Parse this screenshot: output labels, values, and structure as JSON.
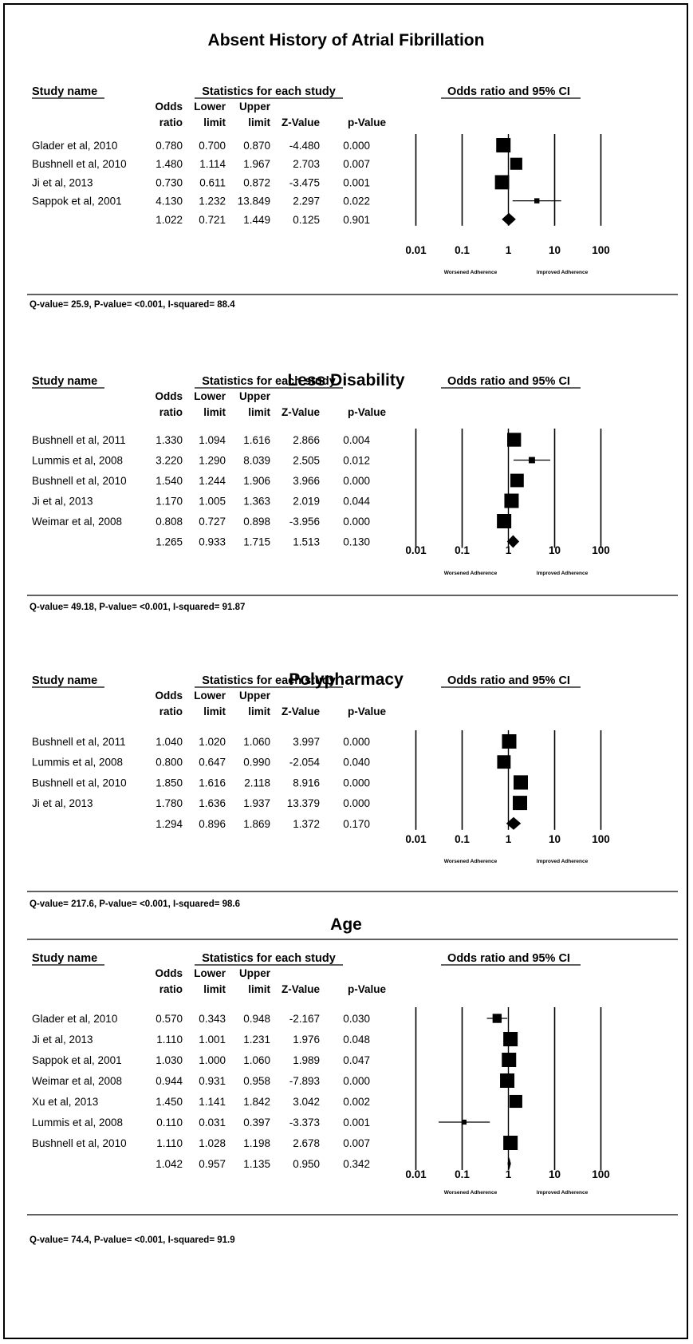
{
  "columns": {
    "study": "Study name",
    "stats": "Statistics for each study",
    "forest": "Odds ratio and 95% CI",
    "odds": [
      "Odds",
      "ratio"
    ],
    "lower": [
      "Lower",
      "limit"
    ],
    "upper": [
      "Upper",
      "limit"
    ],
    "z": "Z-Value",
    "p": "p-Value"
  },
  "adherence": {
    "worsened": "Worsened Adherence",
    "improved": "Improved Adherence"
  },
  "chart_data": [
    {
      "type": "forest",
      "title": "Absent History of Atrial Fibrillation",
      "x_scale": "log",
      "x_ticks": [
        0.01,
        0.1,
        1,
        10,
        100
      ],
      "x_tick_labels": [
        "0.01",
        "0.1",
        "1",
        "10",
        "100"
      ],
      "rows": [
        {
          "study": "Glader et al, 2010",
          "or": "0.780",
          "lower": "0.700",
          "upper": "0.870",
          "z": "-4.480",
          "p": "0.000"
        },
        {
          "study": "Bushnell et al, 2010",
          "or": "1.480",
          "lower": "1.114",
          "upper": "1.967",
          "z": "2.703",
          "p": "0.007"
        },
        {
          "study": "Ji et al, 2013",
          "or": "0.730",
          "lower": "0.611",
          "upper": "0.872",
          "z": "-3.475",
          "p": "0.001"
        },
        {
          "study": "Sappok et al, 2001",
          "or": "4.130",
          "lower": "1.232",
          "upper": "13.849",
          "z": "2.297",
          "p": "0.022"
        }
      ],
      "summary": {
        "or": "1.022",
        "lower": "0.721",
        "upper": "1.449",
        "z": "0.125",
        "p": "0.901"
      },
      "footer": "Q-value= 25.9, P-value= <0.001, I-squared= 88.4"
    },
    {
      "type": "forest",
      "title": "Less Disability",
      "x_scale": "log",
      "x_ticks": [
        0.01,
        0.1,
        1,
        10,
        100
      ],
      "x_tick_labels": [
        "0.01",
        "0.1",
        "1",
        "10",
        "100"
      ],
      "rows": [
        {
          "study": "Bushnell et al, 2011",
          "or": "1.330",
          "lower": "1.094",
          "upper": "1.616",
          "z": "2.866",
          "p": "0.004"
        },
        {
          "study": "Lummis et al, 2008",
          "or": "3.220",
          "lower": "1.290",
          "upper": "8.039",
          "z": "2.505",
          "p": "0.012"
        },
        {
          "study": "Bushnell et al, 2010",
          "or": "1.540",
          "lower": "1.244",
          "upper": "1.906",
          "z": "3.966",
          "p": "0.000"
        },
        {
          "study": "Ji et al, 2013",
          "or": "1.170",
          "lower": "1.005",
          "upper": "1.363",
          "z": "2.019",
          "p": "0.044"
        },
        {
          "study": "Weimar et al, 2008",
          "or": "0.808",
          "lower": "0.727",
          "upper": "0.898",
          "z": "-3.956",
          "p": "0.000"
        }
      ],
      "summary": {
        "or": "1.265",
        "lower": "0.933",
        "upper": "1.715",
        "z": "1.513",
        "p": "0.130"
      },
      "footer": "Q-value= 49.18, P-value= <0.001, I-squared= 91.87"
    },
    {
      "type": "forest",
      "title": "Polypharmacy",
      "x_scale": "log",
      "x_ticks": [
        0.01,
        0.1,
        1,
        10,
        100
      ],
      "x_tick_labels": [
        "0.01",
        "0.1",
        "1",
        "10",
        "100"
      ],
      "rows": [
        {
          "study": "Bushnell et al, 2011",
          "or": "1.040",
          "lower": "1.020",
          "upper": "1.060",
          "z": "3.997",
          "p": "0.000"
        },
        {
          "study": "Lummis et al, 2008",
          "or": "0.800",
          "lower": "0.647",
          "upper": "0.990",
          "z": "-2.054",
          "p": "0.040"
        },
        {
          "study": "Bushnell et al, 2010",
          "or": "1.850",
          "lower": "1.616",
          "upper": "2.118",
          "z": "8.916",
          "p": "0.000"
        },
        {
          "study": "Ji et al, 2013",
          "or": "1.780",
          "lower": "1.636",
          "upper": "1.937",
          "z": "13.379",
          "p": "0.000"
        }
      ],
      "summary": {
        "or": "1.294",
        "lower": "0.896",
        "upper": "1.869",
        "z": "1.372",
        "p": "0.170"
      },
      "footer": "Q-value= 217.6, P-value= <0.001, I-squared= 98.6"
    },
    {
      "type": "forest",
      "title": "Age",
      "x_scale": "log",
      "x_ticks": [
        0.01,
        0.1,
        1,
        10,
        100
      ],
      "x_tick_labels": [
        "0.01",
        "0.1",
        "1",
        "10",
        "100"
      ],
      "rows": [
        {
          "study": "Glader et al, 2010",
          "or": "0.570",
          "lower": "0.343",
          "upper": "0.948",
          "z": "-2.167",
          "p": "0.030"
        },
        {
          "study": "Ji et al, 2013",
          "or": "1.110",
          "lower": "1.001",
          "upper": "1.231",
          "z": "1.976",
          "p": "0.048"
        },
        {
          "study": "Sappok et al, 2001",
          "or": "1.030",
          "lower": "1.000",
          "upper": "1.060",
          "z": "1.989",
          "p": "0.047"
        },
        {
          "study": "Weimar et al, 2008",
          "or": "0.944",
          "lower": "0.931",
          "upper": "0.958",
          "z": "-7.893",
          "p": "0.000"
        },
        {
          "study": "Xu et al, 2013",
          "or": "1.450",
          "lower": "1.141",
          "upper": "1.842",
          "z": "3.042",
          "p": "0.002"
        },
        {
          "study": "Lummis et al, 2008",
          "or": "0.110",
          "lower": "0.031",
          "upper": "0.397",
          "z": "-3.373",
          "p": "0.001"
        },
        {
          "study": "Bushnell et al, 2010",
          "or": "1.110",
          "lower": "1.028",
          "upper": "1.198",
          "z": "2.678",
          "p": "0.007"
        }
      ],
      "summary": {
        "or": "1.042",
        "lower": "0.957",
        "upper": "1.135",
        "z": "0.950",
        "p": "0.342"
      },
      "footer": "Q-value= 74.4, P-value= <0.001, I-squared= 91.9"
    }
  ]
}
